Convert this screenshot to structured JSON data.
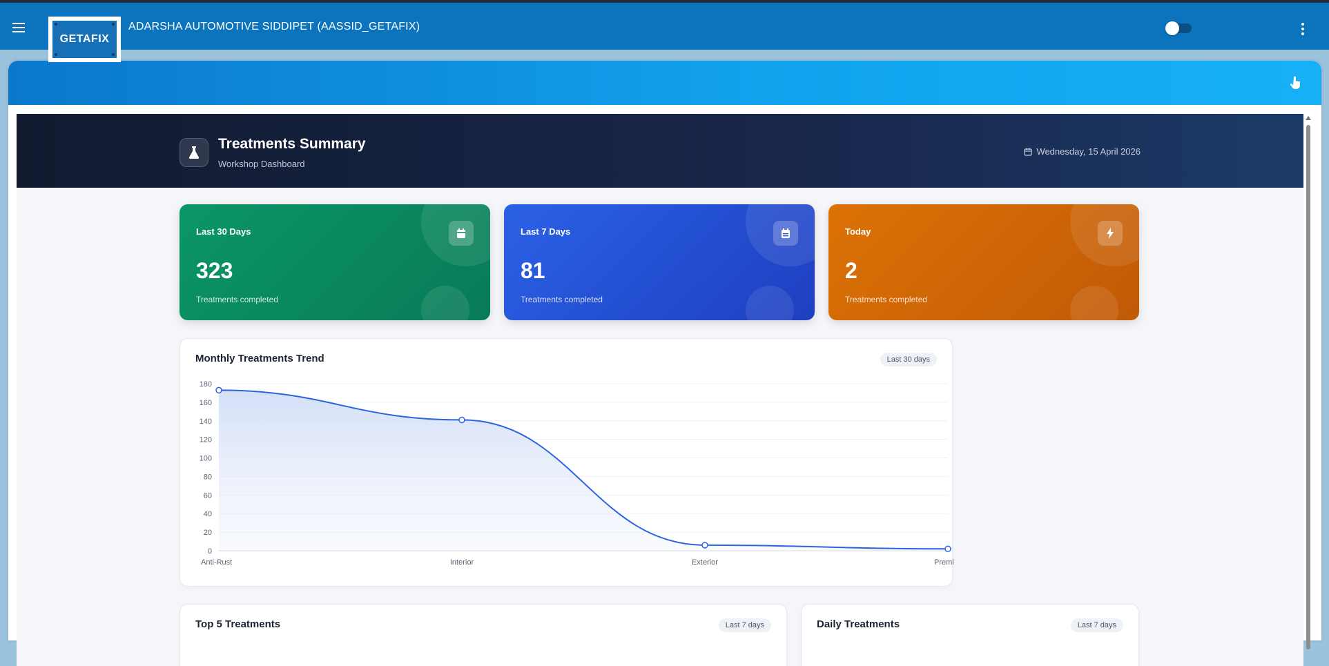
{
  "header": {
    "title": "ADARSHA AUTOMOTIVE SIDDIPET (AASSID_GETAFIX)",
    "logo_text": "GETAFIX",
    "menu_icon": "hamburger-icon",
    "toggle_icon": "theme-toggle",
    "more_icon": "kebab-icon"
  },
  "panel": {
    "pointer_icon": "hand-pointer-icon"
  },
  "hero": {
    "title": "Treatments Summary",
    "subtitle": "Workshop Dashboard",
    "date": "Wednesday, 15 April 2026",
    "icon": "flask-icon"
  },
  "stats": [
    {
      "label": "Last 30 Days",
      "value": "323",
      "sub": "Treatments completed",
      "icon": "calendar-icon",
      "color": "#0b9667"
    },
    {
      "label": "Last 7 Days",
      "value": "81",
      "sub": "Treatments completed",
      "icon": "calendar-icon",
      "color": "#2b61e6"
    },
    {
      "label": "Today",
      "value": "2",
      "sub": "Treatments completed",
      "icon": "bolt-icon",
      "color": "#dc7206"
    }
  ],
  "trend_card": {
    "title": "Monthly Treatments Trend",
    "range": "Last 30 days"
  },
  "chart_data": {
    "type": "line",
    "categories": [
      "Anti-Rust",
      "Interior",
      "Exterior",
      "Premium"
    ],
    "values": [
      173,
      141,
      6,
      2
    ],
    "ylim": [
      0,
      180
    ],
    "yticks": [
      0,
      20,
      40,
      60,
      80,
      100,
      120,
      140,
      160,
      180
    ],
    "grid": true,
    "line_color": "#2b63e0"
  },
  "top5_card": {
    "title": "Top 5 Treatments",
    "range": "Last 7 days"
  },
  "daily_card": {
    "title": "Daily Treatments",
    "range": "Last 7 days"
  }
}
